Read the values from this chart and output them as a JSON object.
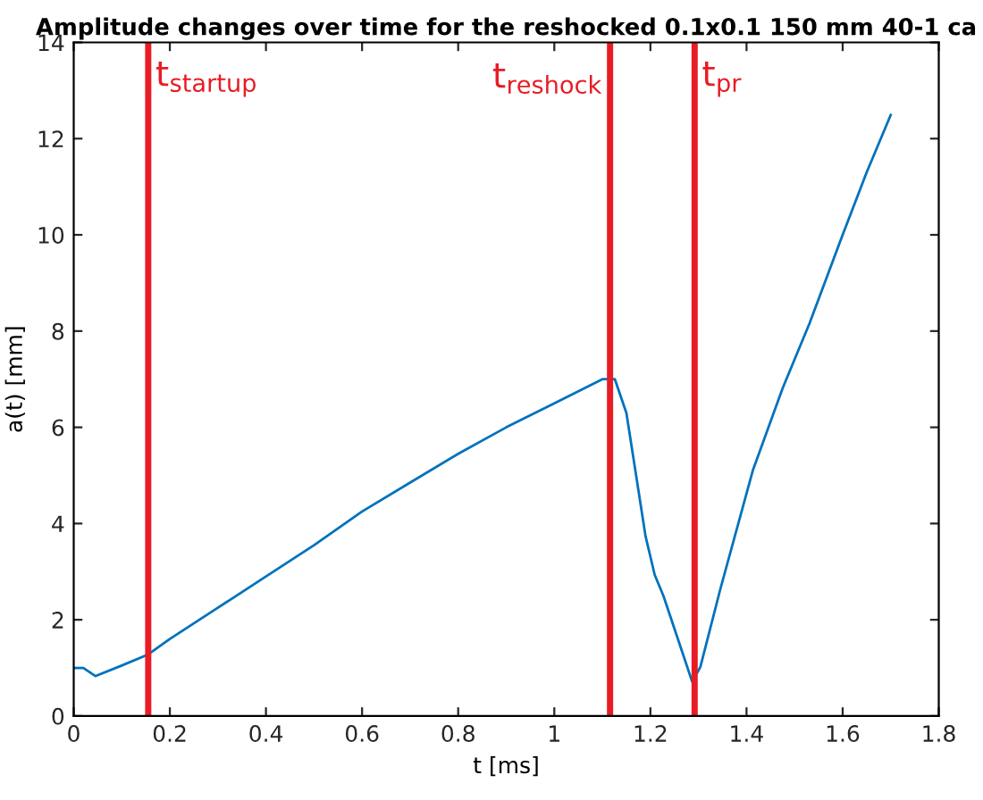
{
  "chart_data": {
    "type": "line",
    "title": "Amplitude changes over time for the reshocked 0.1x0.1 150 mm 40-1 ca",
    "xlabel": "t [ms]",
    "ylabel": "a(t) [mm]",
    "x": [
      0,
      0.02,
      0.045,
      0.1,
      0.155,
      0.2,
      0.3,
      0.4,
      0.5,
      0.6,
      0.7,
      0.8,
      0.9,
      1.0,
      1.1,
      1.126,
      1.15,
      1.19,
      1.209,
      1.227,
      1.287,
      1.304,
      1.345,
      1.413,
      1.475,
      1.531,
      1.6,
      1.65,
      1.7
    ],
    "series": [
      {
        "color": "#0072bd",
        "values": [
          1.0,
          1.0,
          0.83,
          1.05,
          1.28,
          1.6,
          2.25,
          2.9,
          3.55,
          4.25,
          4.85,
          5.45,
          6.0,
          6.5,
          7.0,
          7.0,
          6.3,
          3.73,
          2.93,
          2.5,
          0.71,
          1.02,
          2.62,
          5.1,
          6.81,
          8.16,
          10.0,
          11.3,
          12.49
        ]
      }
    ],
    "xlim": [
      0,
      1.8
    ],
    "ylim": [
      0,
      14
    ],
    "xticks": [
      0,
      0.2,
      0.4,
      0.6,
      0.8,
      1,
      1.2,
      1.4,
      1.6,
      1.8
    ],
    "yticks": [
      0,
      2,
      4,
      6,
      8,
      10,
      12,
      14
    ],
    "grid": false,
    "ref_lines": [
      {
        "axis": "x",
        "value": 0.155,
        "label": "t$_{startup}$",
        "color": "#e81c24"
      },
      {
        "axis": "x",
        "value": 1.116,
        "label": "t$_{reshock}$",
        "color": "#e81c24"
      },
      {
        "axis": "x",
        "value": 1.292,
        "label": "t$_{pr}$",
        "color": "#e81c24"
      }
    ]
  }
}
